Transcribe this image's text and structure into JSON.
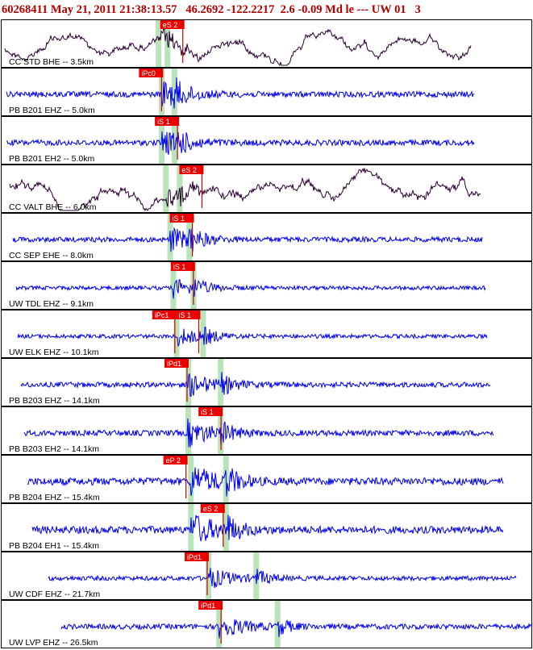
{
  "header": {
    "event_id": "60268411",
    "datetime": "May 21, 2011 21:38:13.57",
    "location": "46.2692 -122.2217",
    "magnitude": "2.6 -0.09 Md le ---",
    "network": "UW 01",
    "version": "3"
  },
  "colors": {
    "trace_blue": "#0000ee",
    "trace_dark": "#2a0033",
    "pick_label_bg": "#ee0000",
    "pick_line": "#cc0000",
    "window_green": "#b9e4b9",
    "border": "#000000",
    "header_text": "#b00000"
  },
  "panels": [
    {
      "label": "CC STD BHE -- 3.5km",
      "trace_color": "dark",
      "green_bands_frac": [
        0.296,
        0.313
      ],
      "picks": [
        {
          "label": "eS 2",
          "frac": 0.3
        }
      ]
    },
    {
      "label": "PB B201 EHZ -- 5.0km",
      "trace_color": "blue",
      "green_bands_frac": [
        0.302,
        0.326
      ],
      "picks": [
        {
          "label": "iPc0",
          "frac": 0.26
        }
      ]
    },
    {
      "label": "PB B201 EH2 -- 5.0km",
      "trace_color": "blue",
      "green_bands_frac": [
        0.302,
        0.326
      ],
      "picks": [
        {
          "label": "iS 1",
          "frac": 0.29
        }
      ]
    },
    {
      "label": "CC VALT BHE -- 6.0km",
      "trace_color": "dark",
      "green_bands_frac": [
        0.31,
        0.336
      ],
      "picks": [
        {
          "label": "eS 2",
          "frac": 0.336
        }
      ]
    },
    {
      "label": "CC SEP EHE -- 8.0km",
      "trace_color": "blue",
      "green_bands_frac": [
        0.318,
        0.354
      ],
      "picks": [
        {
          "label": "iS 1",
          "frac": 0.318
        }
      ]
    },
    {
      "label": "UW TDL EHZ -- 9.1km",
      "trace_color": "blue",
      "green_bands_frac": [
        0.324,
        0.362
      ],
      "picks": [
        {
          "label": "iS 1",
          "frac": 0.32
        }
      ]
    },
    {
      "label": "UW ELK EHZ -- 10.1km",
      "trace_color": "blue",
      "green_bands_frac": [
        0.33,
        0.38
      ],
      "picks": [
        {
          "label": "iPc1",
          "frac": 0.285
        },
        {
          "label": "iS 1",
          "frac": 0.33
        }
      ]
    },
    {
      "label": "PB B203 EHZ -- 14.1km",
      "trace_color": "blue",
      "green_bands_frac": [
        0.352,
        0.413
      ],
      "picks": [
        {
          "label": "iPd1",
          "frac": 0.308
        }
      ]
    },
    {
      "label": "PB B203 EH2 -- 14.1km",
      "trace_color": "blue",
      "green_bands_frac": [
        0.352,
        0.413
      ],
      "picks": [
        {
          "label": "iS 1",
          "frac": 0.372
        }
      ]
    },
    {
      "label": "PB B204 EHZ -- 15.4km",
      "trace_color": "blue",
      "green_bands_frac": [
        0.357,
        0.423
      ],
      "picks": [
        {
          "label": "eP 2",
          "frac": 0.306
        }
      ]
    },
    {
      "label": "PB B204 EH1 -- 15.4km",
      "trace_color": "blue",
      "green_bands_frac": [
        0.357,
        0.423
      ],
      "picks": [
        {
          "label": "eS 2",
          "frac": 0.376
        }
      ]
    },
    {
      "label": "UW CDF EHZ -- 21.7km",
      "trace_color": "blue",
      "green_bands_frac": [
        0.39,
        0.48
      ],
      "picks": [
        {
          "label": "iPd1",
          "frac": 0.346
        }
      ]
    },
    {
      "label": "UW LVP EHZ -- 26.5km",
      "trace_color": "blue",
      "green_bands_frac": [
        0.41,
        0.52
      ],
      "picks": [
        {
          "label": "iPd1",
          "frac": 0.372
        }
      ]
    }
  ]
}
